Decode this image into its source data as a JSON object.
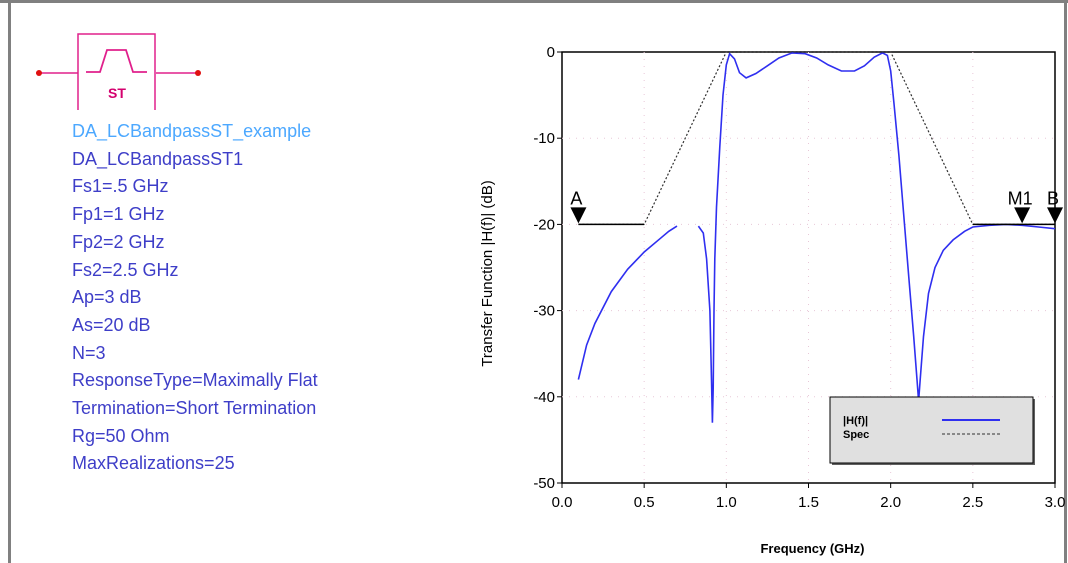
{
  "component": {
    "symbol_label": "ST",
    "params": [
      "DA_LCBandpassST_example",
      "DA_LCBandpassST1",
      "Fs1=.5 GHz",
      "Fp1=1 GHz",
      "Fp2=2 GHz",
      "Fs2=2.5 GHz",
      "Ap=3 dB",
      "As=20 dB",
      "N=3",
      "ResponseType=Maximally Flat",
      "Termination=Short Termination",
      "Rg=50 Ohm",
      "MaxRealizations=25"
    ]
  },
  "colors": {
    "symbol": "#e0208c",
    "param_text": "#3e3ec8",
    "param_highlight": "#4ca8ff",
    "response_line": "#2f2ff0",
    "spec_line": "#303030",
    "plot_grid": "#e8c8d8"
  },
  "chart_data": {
    "type": "line",
    "title": "",
    "xlabel": "Frequency (GHz)",
    "ylabel": "Transfer Function |H(f)| (dB)",
    "xlim": [
      0,
      3
    ],
    "ylim": [
      -50,
      0
    ],
    "x_ticks": [
      "0.0",
      "0.5",
      "1.0",
      "1.5",
      "2.0",
      "2.5",
      "3.0"
    ],
    "y_ticks": [
      "0",
      "-10",
      "-20",
      "-30",
      "-40",
      "-50"
    ],
    "grid": true,
    "legend_position": "bottom-right",
    "series": [
      {
        "name": "|H(f)|",
        "style": "solid",
        "segments": [
          [
            [
              0.1,
              -38
            ],
            [
              0.15,
              -34
            ],
            [
              0.2,
              -31.5
            ],
            [
              0.3,
              -27.8
            ],
            [
              0.4,
              -25.2
            ],
            [
              0.5,
              -23.2
            ],
            [
              0.6,
              -21.6
            ],
            [
              0.65,
              -20.8
            ],
            [
              0.7,
              -20.2
            ]
          ],
          [
            [
              0.83,
              -20.2
            ],
            [
              0.86,
              -21
            ],
            [
              0.88,
              -24
            ],
            [
              0.9,
              -30
            ],
            [
              0.91,
              -38
            ],
            [
              0.915,
              -43
            ],
            [
              0.92,
              -39
            ],
            [
              0.925,
              -30
            ],
            [
              0.93,
              -24
            ],
            [
              0.94,
              -18
            ],
            [
              0.96,
              -11
            ],
            [
              0.98,
              -5
            ],
            [
              1.0,
              -1.5
            ],
            [
              1.02,
              -0.2
            ],
            [
              1.05,
              -0.8
            ],
            [
              1.08,
              -2.4
            ],
            [
              1.12,
              -3
            ],
            [
              1.18,
              -2.5
            ],
            [
              1.25,
              -1.6
            ],
            [
              1.32,
              -0.7
            ],
            [
              1.4,
              -0.1
            ],
            [
              1.48,
              -0.2
            ],
            [
              1.55,
              -0.7
            ],
            [
              1.62,
              -1.5
            ],
            [
              1.7,
              -2.2
            ],
            [
              1.78,
              -2.2
            ],
            [
              1.84,
              -1.6
            ],
            [
              1.9,
              -0.6
            ],
            [
              1.95,
              -0.1
            ],
            [
              1.98,
              -0.4
            ],
            [
              2.0,
              -2.2
            ],
            [
              2.02,
              -6
            ],
            [
              2.05,
              -12
            ],
            [
              2.08,
              -19
            ],
            [
              2.11,
              -26
            ],
            [
              2.14,
              -33
            ],
            [
              2.16,
              -38
            ],
            [
              2.17,
              -40.5
            ],
            [
              2.18,
              -38
            ],
            [
              2.2,
              -33
            ],
            [
              2.23,
              -28
            ],
            [
              2.27,
              -25
            ],
            [
              2.32,
              -23
            ],
            [
              2.38,
              -21.8
            ],
            [
              2.45,
              -20.8
            ],
            [
              2.5,
              -20.3
            ],
            [
              2.6,
              -20.1
            ],
            [
              2.7,
              -20
            ],
            [
              2.8,
              -20.1
            ],
            [
              2.9,
              -20.3
            ],
            [
              3.0,
              -20.5
            ]
          ]
        ]
      },
      {
        "name": "Spec",
        "style": "dashed",
        "segments": [
          [
            [
              0.1,
              -20
            ],
            [
              0.5,
              -20
            ],
            [
              1.0,
              0
            ],
            [
              2.0,
              0
            ],
            [
              2.5,
              -20
            ],
            [
              3.0,
              -20
            ]
          ]
        ]
      }
    ],
    "markers": [
      {
        "label": "A",
        "x": 0.1,
        "y": -20
      },
      {
        "label": "M1",
        "x": 2.8,
        "y": -20
      },
      {
        "label": "B",
        "x": 3.0,
        "y": -20
      }
    ]
  }
}
